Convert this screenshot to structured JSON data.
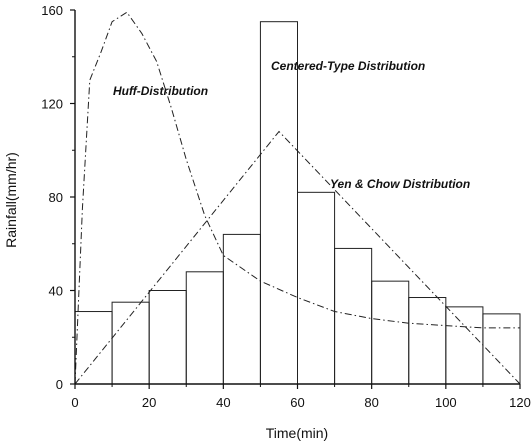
{
  "chart_data": {
    "type": "bar+line",
    "xlabel": "Time(min)",
    "ylabel": "Rainfall(mm/hr)",
    "xlim": [
      0,
      120
    ],
    "ylim": [
      0,
      160
    ],
    "x_ticks": [
      0,
      20,
      40,
      60,
      80,
      100,
      120
    ],
    "y_ticks": [
      0,
      40,
      80,
      120,
      160
    ],
    "grid": false,
    "annotations": [
      "Huff-Distribution",
      "Centered-Type Distribution",
      "Yen & Chow Distribution"
    ],
    "bars": {
      "name": "Centered-Type Distribution",
      "bin_width": 10,
      "x_start": [
        0,
        10,
        20,
        30,
        40,
        50,
        60,
        70,
        80,
        90,
        100,
        110
      ],
      "values": [
        31,
        35,
        40,
        48,
        64,
        155,
        82,
        58,
        44,
        37,
        33,
        30
      ]
    },
    "series": [
      {
        "name": "Huff-Distribution",
        "style": "dash-dot curve",
        "x": [
          0,
          2,
          4,
          7,
          10,
          14,
          18,
          22,
          26,
          30,
          35,
          40,
          50,
          60,
          70,
          80,
          90,
          100,
          110,
          120
        ],
        "y": [
          0,
          75,
          130,
          142,
          155,
          159,
          150,
          138,
          118,
          96,
          72,
          55,
          44,
          37,
          31,
          28,
          26,
          25,
          24,
          24
        ]
      },
      {
        "name": "Yen & Chow Distribution",
        "style": "dash-dot triangle",
        "x": [
          0,
          55,
          120
        ],
        "y": [
          0,
          108,
          0
        ]
      }
    ]
  }
}
